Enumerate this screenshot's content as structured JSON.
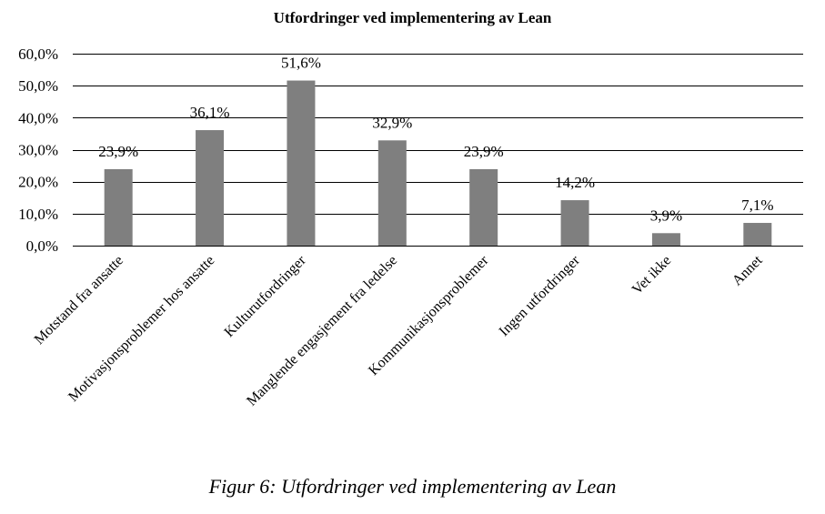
{
  "chart_data": {
    "type": "bar",
    "title": "Utfordringer ved implementering av Lean",
    "categories": [
      "Motstand fra ansatte",
      "Motivasjonsproblemer hos ansatte",
      "Kulturutfordringer",
      "Manglende engasjement fra ledelse",
      "Kommunikasjonsproblemer",
      "Ingen utfordringer",
      "Vet ikke",
      "Annet"
    ],
    "values": [
      23.9,
      36.1,
      51.6,
      32.9,
      23.9,
      14.2,
      3.9,
      7.1
    ],
    "value_labels": [
      "23,9%",
      "36,1%",
      "51,6%",
      "32,9%",
      "23,9%",
      "14,2%",
      "3,9%",
      "7,1%"
    ],
    "yticks": [
      0,
      10,
      20,
      30,
      40,
      50,
      60
    ],
    "ytick_labels": [
      "0,0%",
      "10,0%",
      "20,0%",
      "30,0%",
      "40,0%",
      "50,0%",
      "60,0%"
    ],
    "ylim": [
      0,
      60
    ],
    "grid": true,
    "legend": "none",
    "bar_color": "#7f7f7f",
    "grid_color": "#000000"
  },
  "caption": "Figur 6: Utfordringer ved implementering av Lean"
}
